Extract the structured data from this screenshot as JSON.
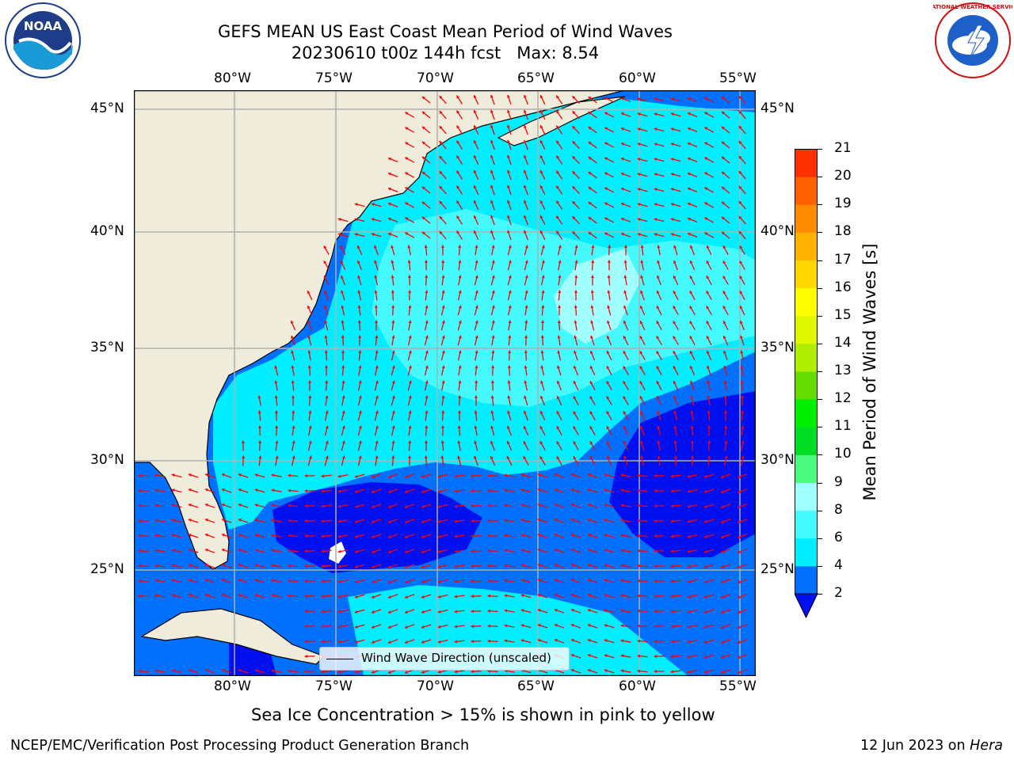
{
  "header": {
    "title_line1": "GEFS MEAN US East Coast Mean Period of Wind Waves",
    "title_line2": "20230610 t00z 144h fcst   Max: 8.54"
  },
  "logos": {
    "left": {
      "text": "NOAA",
      "icon": "noaa-logo"
    },
    "right": {
      "text": "NATIONAL WEATHER SERVICE",
      "icon": "nws-logo"
    }
  },
  "map": {
    "lon_labels": [
      "80°W",
      "75°W",
      "70°W",
      "65°W",
      "60°W",
      "55°W"
    ],
    "lat_labels": [
      "45°N",
      "40°N",
      "35°N",
      "30°N",
      "25°N"
    ],
    "legend_label": "Wind Wave Direction (unscaled)",
    "arrow_color": "#ff0000",
    "land_color": "#efecdb",
    "grid_color": "#b0b0b0"
  },
  "colorbar": {
    "label": "Mean Period of Wind Waves [s]",
    "ticks": [
      "2",
      "4",
      "6",
      "8",
      "9",
      "10",
      "11",
      "12",
      "13",
      "14",
      "15",
      "16",
      "17",
      "18",
      "19",
      "20",
      "21"
    ],
    "colors": [
      "#0070ff",
      "#00eeff",
      "#44faff",
      "#a0ffff",
      "#4dfa80",
      "#00dd22",
      "#00ee00",
      "#66dd00",
      "#b0ee00",
      "#dff700",
      "#ffff00",
      "#ffd800",
      "#ffb000",
      "#ff8c00",
      "#ff6000",
      "#ff3000",
      "#ff0000"
    ],
    "extend_min_color": "#0010ee"
  },
  "footer": {
    "note": "Sea Ice Concentration > 15% is shown in pink to yellow",
    "credit": "NCEP/EMC/Verification Post Processing Product Generation Branch",
    "date": "12 Jun 2023 on ",
    "host": "Hera"
  }
}
